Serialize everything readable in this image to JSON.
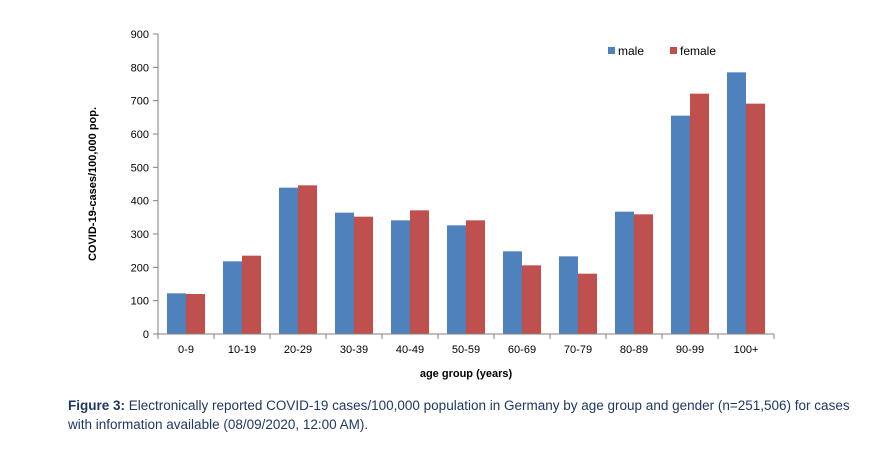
{
  "chart_data": {
    "type": "bar",
    "categories": [
      "0-9",
      "10-19",
      "20-29",
      "30-39",
      "40-49",
      "50-59",
      "60-69",
      "70-79",
      "80-89",
      "90-99",
      "100+"
    ],
    "series": [
      {
        "name": "male",
        "color": "#4f81bd",
        "values": [
          122,
          218,
          439,
          364,
          341,
          326,
          248,
          233,
          367,
          655,
          785
        ]
      },
      {
        "name": "female",
        "color": "#c0504d",
        "values": [
          120,
          235,
          446,
          352,
          371,
          341,
          206,
          181,
          359,
          721,
          691
        ]
      }
    ],
    "xlabel": "age group (years)",
    "ylabel": "COVID-19-cases/100,000 pop.",
    "ylim": [
      0,
      900
    ],
    "yticks": [
      0,
      100,
      200,
      300,
      400,
      500,
      600,
      700,
      800,
      900
    ],
    "grid": false,
    "legend_position": "top-right"
  },
  "caption": {
    "label": "Figure 3:",
    "text": " Electronically reported COVID-19 cases/100,000 population in Germany by age group and gender (n=251,506) for cases with information available (08/09/2020, 12:00 AM)."
  }
}
